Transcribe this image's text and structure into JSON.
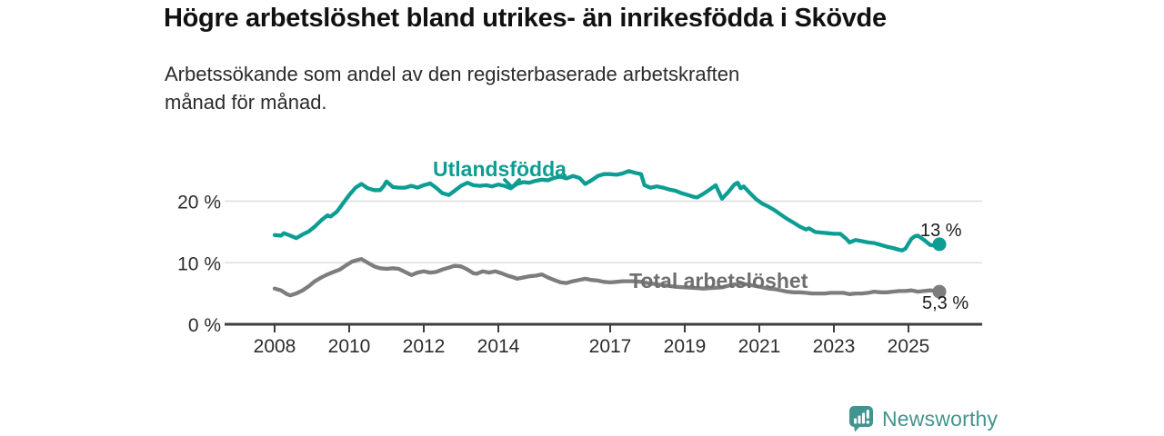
{
  "header": {
    "title": "Högre arbetslöshet bland utrikes- än inrikesfödda i Skövde",
    "subtitle": "Arbetssökande som andel av den registerbaserade arbetskraften månad för månad."
  },
  "colors": {
    "foreign_born_line": "#0d9d93",
    "total_line": "#7d7d7d",
    "total_label": "#6f6f6f",
    "gridline": "#dedede",
    "axis": "#3d3d3d",
    "tick_text": "#2d2d2d",
    "brand": "#43948e"
  },
  "footer": {
    "brand": "Newsworthy",
    "logo_icon": "bar-chart-speech-bubble-icon"
  },
  "chart_data": {
    "type": "line",
    "title": "Högre arbetslöshet bland utrikes- än inrikesfödda i Skövde",
    "subtitle": "Arbetssökande som andel av den registerbaserade arbetskraften månad för månad.",
    "xlabel": "",
    "ylabel": "",
    "unit": "%",
    "grid": "horizontal",
    "legend_position": "inline-annotations",
    "x_range": [
      2008,
      2025.9
    ],
    "ylim": [
      0,
      27
    ],
    "x_ticks": [
      2008,
      2010,
      2012,
      2014,
      2017,
      2019,
      2021,
      2023,
      2025
    ],
    "y_ticks": [
      {
        "value": 0,
        "label": "0 %"
      },
      {
        "value": 10,
        "label": "10 %"
      },
      {
        "value": 20,
        "label": "20 %"
      }
    ],
    "series": [
      {
        "name": "Utlandsfödda",
        "color": "#0d9d93",
        "end_value": 13,
        "end_label": "13 %",
        "points": [
          [
            2008.0,
            14.5
          ],
          [
            2008.17,
            14.4
          ],
          [
            2008.25,
            14.8
          ],
          [
            2008.42,
            14.4
          ],
          [
            2008.58,
            14.0
          ],
          [
            2008.75,
            14.6
          ],
          [
            2008.92,
            15.1
          ],
          [
            2009.08,
            15.9
          ],
          [
            2009.25,
            16.9
          ],
          [
            2009.42,
            17.7
          ],
          [
            2009.5,
            17.5
          ],
          [
            2009.67,
            18.3
          ],
          [
            2009.83,
            19.6
          ],
          [
            2010.0,
            21.0
          ],
          [
            2010.17,
            22.2
          ],
          [
            2010.33,
            22.8
          ],
          [
            2010.5,
            22.1
          ],
          [
            2010.67,
            21.8
          ],
          [
            2010.83,
            21.8
          ],
          [
            2010.92,
            22.4
          ],
          [
            2011.0,
            23.2
          ],
          [
            2011.17,
            22.3
          ],
          [
            2011.33,
            22.2
          ],
          [
            2011.5,
            22.2
          ],
          [
            2011.67,
            22.5
          ],
          [
            2011.83,
            22.2
          ],
          [
            2012.0,
            22.6
          ],
          [
            2012.17,
            22.9
          ],
          [
            2012.33,
            22.2
          ],
          [
            2012.5,
            21.3
          ],
          [
            2012.67,
            21.0
          ],
          [
            2012.83,
            21.7
          ],
          [
            2013.0,
            22.5
          ],
          [
            2013.17,
            23.0
          ],
          [
            2013.33,
            22.6
          ],
          [
            2013.5,
            22.5
          ],
          [
            2013.67,
            22.6
          ],
          [
            2013.83,
            22.4
          ],
          [
            2014.0,
            22.7
          ],
          [
            2014.17,
            22.5
          ],
          [
            2014.33,
            22.1
          ],
          [
            2014.5,
            22.8
          ],
          [
            2014.67,
            23.1
          ],
          [
            2014.83,
            23.0
          ],
          [
            2015.0,
            23.3
          ],
          [
            2015.17,
            23.5
          ],
          [
            2015.33,
            23.4
          ],
          [
            2015.5,
            23.8
          ],
          [
            2015.67,
            24.0
          ],
          [
            2015.83,
            23.7
          ],
          [
            2016.0,
            24.1
          ],
          [
            2016.17,
            23.8
          ],
          [
            2016.33,
            22.8
          ],
          [
            2016.5,
            23.4
          ],
          [
            2016.67,
            24.1
          ],
          [
            2016.83,
            24.4
          ],
          [
            2017.0,
            24.4
          ],
          [
            2017.17,
            24.3
          ],
          [
            2017.33,
            24.5
          ],
          [
            2017.5,
            24.9
          ],
          [
            2017.67,
            24.6
          ],
          [
            2017.83,
            24.4
          ],
          [
            2017.92,
            22.6
          ],
          [
            2018.08,
            22.2
          ],
          [
            2018.25,
            22.4
          ],
          [
            2018.42,
            22.2
          ],
          [
            2018.58,
            21.9
          ],
          [
            2018.75,
            21.7
          ],
          [
            2018.92,
            21.3
          ],
          [
            2019.08,
            21.0
          ],
          [
            2019.25,
            20.7
          ],
          [
            2019.33,
            20.6
          ],
          [
            2019.5,
            21.2
          ],
          [
            2019.67,
            21.9
          ],
          [
            2019.83,
            22.6
          ],
          [
            2020.0,
            20.4
          ],
          [
            2020.17,
            21.5
          ],
          [
            2020.33,
            22.7
          ],
          [
            2020.42,
            23.0
          ],
          [
            2020.5,
            22.1
          ],
          [
            2020.58,
            22.4
          ],
          [
            2020.75,
            21.3
          ],
          [
            2020.92,
            20.3
          ],
          [
            2021.08,
            19.6
          ],
          [
            2021.25,
            19.1
          ],
          [
            2021.42,
            18.5
          ],
          [
            2021.58,
            17.8
          ],
          [
            2021.75,
            17.1
          ],
          [
            2021.92,
            16.5
          ],
          [
            2022.08,
            15.9
          ],
          [
            2022.25,
            15.4
          ],
          [
            2022.33,
            15.6
          ],
          [
            2022.5,
            15.0
          ],
          [
            2022.67,
            14.9
          ],
          [
            2022.83,
            14.8
          ],
          [
            2023.0,
            14.7
          ],
          [
            2023.17,
            14.7
          ],
          [
            2023.33,
            13.9
          ],
          [
            2023.42,
            13.3
          ],
          [
            2023.58,
            13.7
          ],
          [
            2023.75,
            13.5
          ],
          [
            2023.92,
            13.3
          ],
          [
            2024.08,
            13.2
          ],
          [
            2024.25,
            12.9
          ],
          [
            2024.42,
            12.6
          ],
          [
            2024.58,
            12.4
          ],
          [
            2024.75,
            12.1
          ],
          [
            2024.83,
            12.0
          ],
          [
            2024.92,
            12.3
          ],
          [
            2025.0,
            13.1
          ],
          [
            2025.08,
            13.9
          ],
          [
            2025.17,
            14.3
          ],
          [
            2025.25,
            14.4
          ],
          [
            2025.42,
            13.7
          ],
          [
            2025.58,
            12.9
          ],
          [
            2025.67,
            12.8
          ],
          [
            2025.75,
            13.1
          ],
          [
            2025.83,
            13.0
          ]
        ]
      },
      {
        "name": "Total arbetslöshet",
        "color": "#7d7d7d",
        "end_value": 5.3,
        "end_label": "5,3 %",
        "points": [
          [
            2008.0,
            5.8
          ],
          [
            2008.17,
            5.5
          ],
          [
            2008.33,
            4.9
          ],
          [
            2008.42,
            4.7
          ],
          [
            2008.58,
            5.0
          ],
          [
            2008.75,
            5.5
          ],
          [
            2008.92,
            6.2
          ],
          [
            2009.08,
            7.0
          ],
          [
            2009.25,
            7.6
          ],
          [
            2009.42,
            8.1
          ],
          [
            2009.58,
            8.5
          ],
          [
            2009.75,
            8.9
          ],
          [
            2009.92,
            9.6
          ],
          [
            2010.08,
            10.2
          ],
          [
            2010.25,
            10.5
          ],
          [
            2010.33,
            10.6
          ],
          [
            2010.5,
            10.0
          ],
          [
            2010.67,
            9.4
          ],
          [
            2010.83,
            9.1
          ],
          [
            2011.0,
            9.0
          ],
          [
            2011.17,
            9.1
          ],
          [
            2011.33,
            9.0
          ],
          [
            2011.5,
            8.5
          ],
          [
            2011.67,
            8.0
          ],
          [
            2011.83,
            8.4
          ],
          [
            2012.0,
            8.6
          ],
          [
            2012.17,
            8.4
          ],
          [
            2012.33,
            8.5
          ],
          [
            2012.5,
            8.9
          ],
          [
            2012.67,
            9.2
          ],
          [
            2012.83,
            9.5
          ],
          [
            2013.0,
            9.4
          ],
          [
            2013.17,
            8.9
          ],
          [
            2013.33,
            8.3
          ],
          [
            2013.42,
            8.2
          ],
          [
            2013.58,
            8.6
          ],
          [
            2013.75,
            8.4
          ],
          [
            2013.92,
            8.6
          ],
          [
            2014.08,
            8.3
          ],
          [
            2014.25,
            7.9
          ],
          [
            2014.42,
            7.6
          ],
          [
            2014.5,
            7.4
          ],
          [
            2014.67,
            7.6
          ],
          [
            2014.83,
            7.8
          ],
          [
            2015.0,
            7.9
          ],
          [
            2015.17,
            8.1
          ],
          [
            2015.33,
            7.6
          ],
          [
            2015.5,
            7.2
          ],
          [
            2015.67,
            6.8
          ],
          [
            2015.83,
            6.7
          ],
          [
            2016.0,
            7.0
          ],
          [
            2016.17,
            7.2
          ],
          [
            2016.33,
            7.4
          ],
          [
            2016.5,
            7.2
          ],
          [
            2016.67,
            7.1
          ],
          [
            2016.83,
            6.9
          ],
          [
            2017.0,
            6.8
          ],
          [
            2017.17,
            6.9
          ],
          [
            2017.33,
            7.0
          ],
          [
            2017.5,
            7.0
          ],
          [
            2017.67,
            7.0
          ],
          [
            2017.83,
            6.9
          ],
          [
            2018.0,
            6.7
          ],
          [
            2018.25,
            6.5
          ],
          [
            2018.5,
            6.3
          ],
          [
            2018.75,
            6.1
          ],
          [
            2019.0,
            6.0
          ],
          [
            2019.25,
            5.9
          ],
          [
            2019.5,
            5.8
          ],
          [
            2019.75,
            5.9
          ],
          [
            2020.0,
            6.0
          ],
          [
            2020.25,
            6.4
          ],
          [
            2020.5,
            6.6
          ],
          [
            2020.75,
            6.4
          ],
          [
            2021.0,
            6.1
          ],
          [
            2021.25,
            5.8
          ],
          [
            2021.42,
            5.7
          ],
          [
            2021.58,
            5.5
          ],
          [
            2021.75,
            5.3
          ],
          [
            2021.92,
            5.2
          ],
          [
            2022.08,
            5.2
          ],
          [
            2022.25,
            5.1
          ],
          [
            2022.42,
            5.0
          ],
          [
            2022.58,
            5.0
          ],
          [
            2022.75,
            5.0
          ],
          [
            2022.92,
            5.1
          ],
          [
            2023.08,
            5.1
          ],
          [
            2023.25,
            5.1
          ],
          [
            2023.42,
            4.9
          ],
          [
            2023.58,
            5.0
          ],
          [
            2023.75,
            5.0
          ],
          [
            2023.92,
            5.1
          ],
          [
            2024.08,
            5.3
          ],
          [
            2024.25,
            5.2
          ],
          [
            2024.42,
            5.2
          ],
          [
            2024.58,
            5.3
          ],
          [
            2024.75,
            5.4
          ],
          [
            2024.92,
            5.4
          ],
          [
            2025.08,
            5.5
          ],
          [
            2025.25,
            5.3
          ],
          [
            2025.42,
            5.4
          ],
          [
            2025.58,
            5.5
          ],
          [
            2025.75,
            5.4
          ],
          [
            2025.83,
            5.3
          ]
        ]
      }
    ]
  }
}
